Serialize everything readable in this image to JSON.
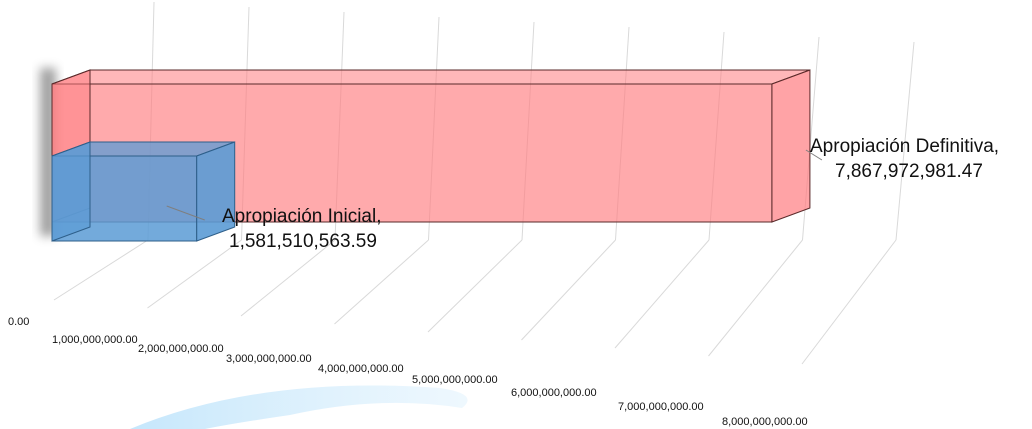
{
  "chart_data": {
    "type": "bar",
    "orientation": "horizontal-3d",
    "categories": [
      "Apropiación Inicial",
      "Apropiación Definitiva"
    ],
    "values": [
      1581510563.59,
      7867972981.47
    ],
    "data_labels": [
      {
        "name": "Apropiación Inicial,",
        "value": "1,581,510,563.59"
      },
      {
        "name": "Apropiación Definitiva,",
        "value": "7,867,972,981.47"
      }
    ],
    "x_ticks": [
      "0.00",
      "1,000,000,000.00",
      "2,000,000,000.00",
      "3,000,000,000.00",
      "4,000,000,000.00",
      "5,000,000,000.00",
      "6,000,000,000.00",
      "7,000,000,000.00",
      "8,000,000,000.00"
    ],
    "xlim": [
      0,
      8000000000
    ],
    "grid": true,
    "legend": "none",
    "colors": {
      "inicial": "#5b9bd5",
      "definitiva": "#ff7c80",
      "gridline": "#d9d9d9",
      "edge": "#000000"
    }
  }
}
